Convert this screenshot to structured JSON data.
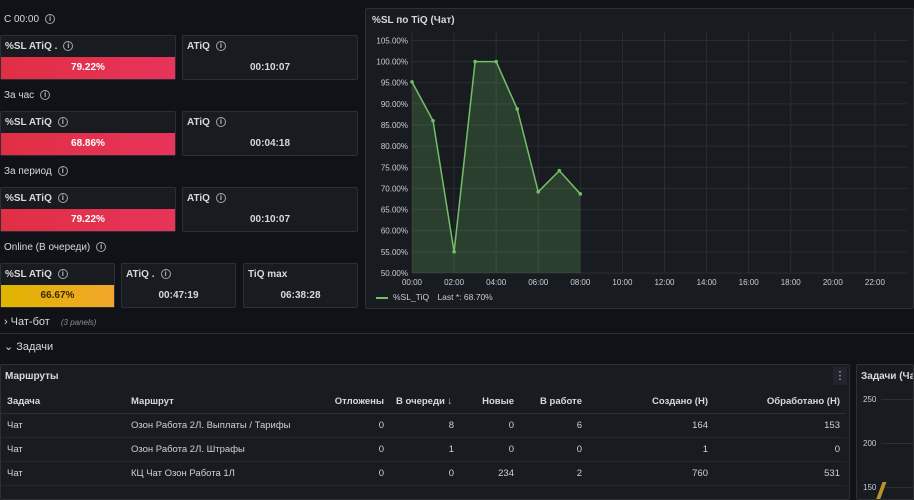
{
  "groups": {
    "today": {
      "header": "С 00:00",
      "sl_title": "%SL ATiQ .",
      "sl_value": "79.22%",
      "atiq_title": "ATiQ",
      "atiq_value": "00:10:07"
    },
    "hour": {
      "header": "За час",
      "sl_title": "%SL ATiQ",
      "sl_value": "68.86%",
      "atiq_title": "ATiQ",
      "atiq_value": "00:04:18"
    },
    "period": {
      "header": "За период",
      "sl_title": "%SL ATiQ",
      "sl_value": "79.22%",
      "atiq_title": "ATiQ",
      "atiq_value": "00:10:07"
    },
    "online": {
      "header": "Online (В очереди)",
      "sl_title": "%SL ATiQ",
      "sl_value": "66.67%",
      "atiq_title": "ATiQ .",
      "atiq_value": "00:47:19",
      "tiq_title": "TiQ max",
      "tiq_value": "06:38:28"
    }
  },
  "colors": {
    "red": "#e02f44",
    "yellow": "#e0b400",
    "series_line": "#73bf69",
    "background": "#111217",
    "panel": "#181b1f"
  },
  "chart_panel": {
    "title": "%SL по TiQ (Чат)",
    "legend_label": "%SL_TiQ",
    "legend_last": "Last *: 68.70%"
  },
  "chart_data": {
    "type": "area",
    "x": [
      "00:00",
      "01:00",
      "02:00",
      "03:00",
      "04:00",
      "05:00",
      "06:00",
      "07:00",
      "08:00"
    ],
    "x_ticks": [
      "00:00",
      "02:00",
      "04:00",
      "06:00",
      "08:00",
      "10:00",
      "12:00",
      "14:00",
      "16:00",
      "18:00",
      "20:00",
      "22:00"
    ],
    "y_ticks": [
      "105.00%",
      "100.00%",
      "95.00%",
      "90.00%",
      "85.00%",
      "80.00%",
      "75.00%",
      "70.00%",
      "65.00%",
      "60.00%",
      "55.00%",
      "50.00%"
    ],
    "ylim": [
      50,
      107
    ],
    "series": [
      {
        "name": "%SL_TiQ",
        "values": [
          95.2,
          86.0,
          55.0,
          100.0,
          100.0,
          88.8,
          69.2,
          74.2,
          68.7
        ]
      }
    ],
    "grid": true,
    "legend": "bottom-left"
  },
  "rows": {
    "chatbot": {
      "arrow": "›",
      "label": "Чат-бот",
      "meta": "(3 panels)"
    },
    "tasks": {
      "arrow": "⌄",
      "label": "Задачи"
    }
  },
  "routes_panel": {
    "title": "Маршруты",
    "menu_glyph": "⋮",
    "columns": [
      "Задача",
      "Маршрут",
      "Отложены",
      "В очереди ↓",
      "Новые",
      "В работе",
      "Создано (Н)",
      "Обработано (Н)"
    ],
    "rows": [
      [
        "Чат",
        "Озон Работа 2Л. Выплаты / Тарифы",
        "0",
        "8",
        "0",
        "6",
        "164",
        "153"
      ],
      [
        "Чат",
        "Озон Работа 2Л. Штрафы",
        "0",
        "1",
        "0",
        "0",
        "1",
        "0"
      ],
      [
        "Чат",
        "КЦ Чат Озон Работа 1Л",
        "0",
        "0",
        "234",
        "2",
        "760",
        "531"
      ]
    ]
  },
  "tasks_panel": {
    "title": "Задачи (Ча",
    "y_ticks": [
      "250",
      "200",
      "150"
    ]
  }
}
